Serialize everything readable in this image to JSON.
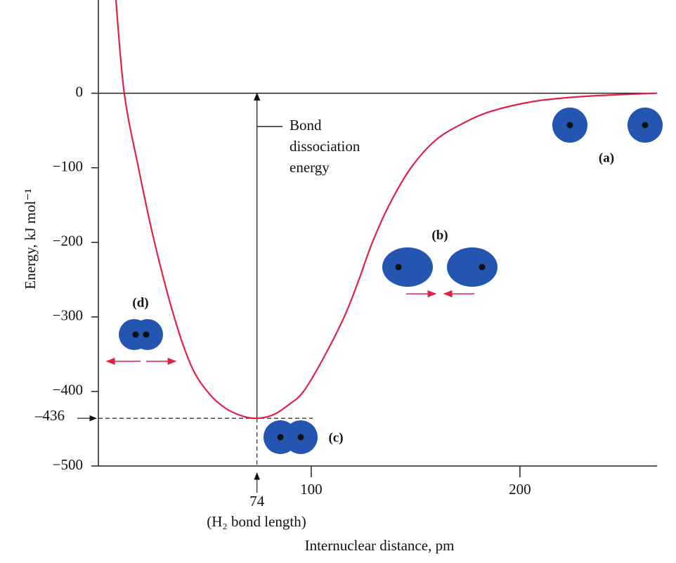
{
  "chart_data": {
    "type": "line",
    "x_label": "Internuclear distance, pm",
    "y_label": "Energy, kJ mol⁻¹",
    "color": "#e0204a",
    "x": [
      6.4,
      10.4,
      17.2,
      24.9,
      34.3,
      42.4,
      50.2,
      58.6,
      67,
      74,
      82,
      89.6,
      96.3,
      105.7,
      115.8,
      122.6,
      129.3,
      137.7,
      147.8,
      159.6,
      173,
      186.5,
      206.7,
      227,
      247,
      265.6
    ],
    "values": [
      125,
      0,
      -100,
      -200,
      -300,
      -365,
      -400,
      -422,
      -433,
      -436,
      -431,
      -417,
      -400,
      -356,
      -300,
      -252,
      -200,
      -148,
      -100,
      -63,
      -40,
      -24,
      -11,
      -5,
      -2,
      0
    ],
    "xlim": [
      -2,
      265.7
    ],
    "ylim": [
      -500,
      125
    ],
    "xticks": [
      100,
      200
    ],
    "yticks": [
      0,
      {
        "value": -100,
        "label": "−100"
      },
      {
        "value": -200,
        "label": "−200"
      },
      {
        "value": -300,
        "label": "−300"
      },
      {
        "value": -400,
        "label": "−400"
      },
      {
        "value": -500,
        "label": "−500"
      }
    ],
    "grid": false,
    "minimum": {
      "x": 74,
      "y": -436,
      "y_label": "–436"
    },
    "annotations": {
      "bond_dissociation": [
        "Bond",
        "dissociation",
        "energy"
      ],
      "bond_length": "(H₂ bond length)",
      "a": "(a)",
      "b": "(b)",
      "c": "(c)",
      "d": "(d)"
    }
  }
}
